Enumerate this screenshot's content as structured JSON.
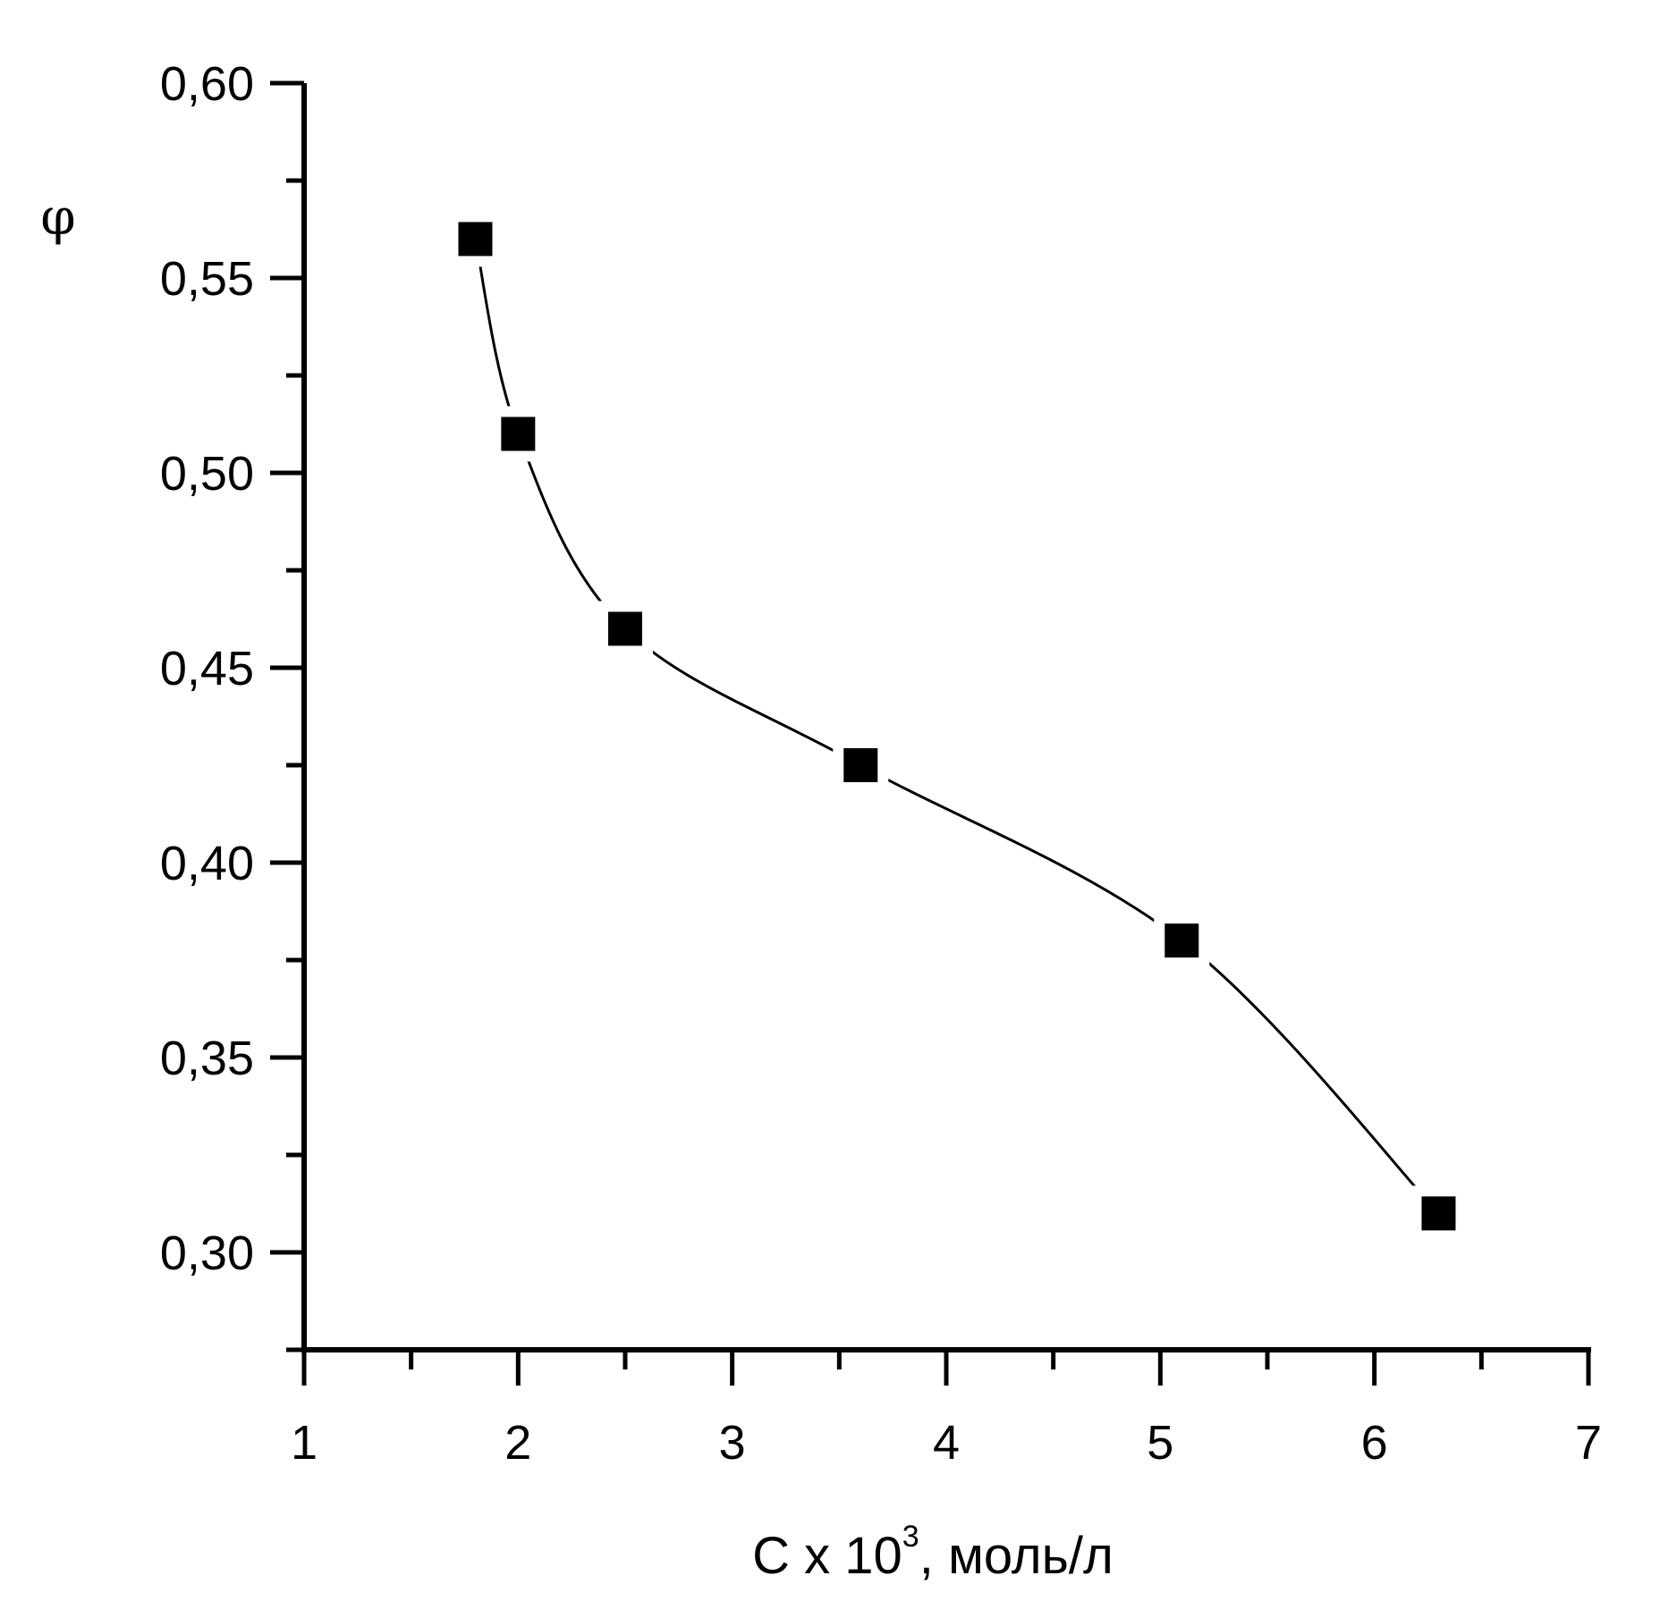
{
  "chart_data": {
    "type": "line",
    "ylabel": "φ",
    "xlabel": {
      "prefix": "C x 10",
      "superscript": "3",
      "suffix": ", моль/л"
    },
    "xlim": [
      1,
      7
    ],
    "ylim": [
      0.275,
      0.6
    ],
    "x_ticks": [
      1,
      2,
      3,
      4,
      5,
      6,
      7
    ],
    "x_tick_labels": [
      "1",
      "2",
      "3",
      "4",
      "5",
      "6",
      "7"
    ],
    "x_minor_ticks": [
      1.5,
      2.5,
      3.5,
      4.5,
      5.5,
      6.5
    ],
    "y_ticks": [
      0.3,
      0.35,
      0.4,
      0.45,
      0.5,
      0.55,
      0.6
    ],
    "y_tick_labels": [
      "0,30",
      "0,35",
      "0,40",
      "0,45",
      "0,50",
      "0,55",
      "0,60"
    ],
    "y_minor_ticks": [
      0.325,
      0.375,
      0.425,
      0.475,
      0.525,
      0.575
    ],
    "grid": false,
    "marker": "square",
    "line": "smooth",
    "series": [
      {
        "x": [
          1.8,
          2.0,
          2.5,
          3.6,
          5.1,
          6.3
        ],
        "y": [
          0.56,
          0.51,
          0.46,
          0.425,
          0.38,
          0.31
        ]
      }
    ]
  }
}
